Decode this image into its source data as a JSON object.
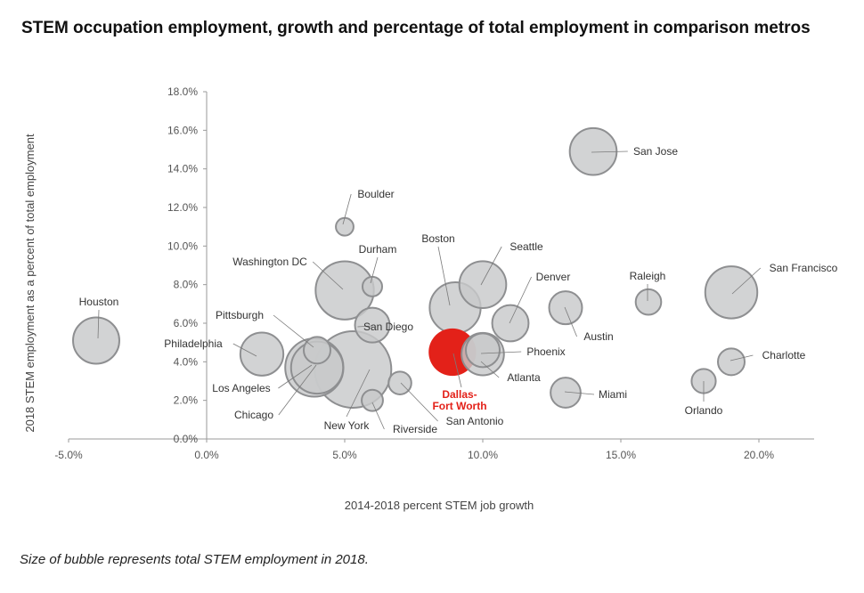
{
  "title": "STEM occupation employment, growth and percentage of total employment in comparison metros",
  "note": "Size of bubble represents total STEM employment in 2018.",
  "colors": {
    "bubble_fill": "#c8c9cb",
    "bubble_stroke": "#8e8f91",
    "highlight": "#e32119",
    "leader": "#7a7a7a"
  },
  "chart_data": {
    "type": "scatter",
    "xlabel": "2014-2018 percent STEM job growth",
    "ylabel": "2018 STEM employment as a percent of total employment",
    "xlim": [
      -0.05,
      0.22
    ],
    "ylim": [
      0,
      0.18
    ],
    "x_ticks": [
      {
        "value": -0.05,
        "label": "-5.0%"
      },
      {
        "value": 0,
        "label": "0.0%"
      },
      {
        "value": 0.05,
        "label": "5.0%"
      },
      {
        "value": 0.1,
        "label": "10.0%"
      },
      {
        "value": 0.15,
        "label": "15.0%"
      },
      {
        "value": 0.2,
        "label": "20.0%"
      }
    ],
    "y_ticks": [
      {
        "value": 0,
        "label": "0.0%"
      },
      {
        "value": 0.02,
        "label": "2.0%"
      },
      {
        "value": 0.04,
        "label": "4.0%"
      },
      {
        "value": 0.06,
        "label": "6.0%"
      },
      {
        "value": 0.08,
        "label": "8.0%"
      },
      {
        "value": 0.1,
        "label": "10.0%"
      },
      {
        "value": 0.12,
        "label": "12.0%"
      },
      {
        "value": 0.14,
        "label": "14.0%"
      },
      {
        "value": 0.16,
        "label": "16.0%"
      },
      {
        "value": 0.18,
        "label": "18.0%"
      }
    ],
    "size_legend": "Size of bubble represents total STEM employment in 2018",
    "points": [
      {
        "name": "New York",
        "x": 0.053,
        "y": 0.036,
        "size": 1.0
      },
      {
        "name": "Washington DC",
        "x": 0.05,
        "y": 0.077,
        "size": 0.55
      },
      {
        "name": "Los Angeles",
        "x": 0.039,
        "y": 0.037,
        "size": 0.55
      },
      {
        "name": "Chicago",
        "x": 0.04,
        "y": 0.037,
        "size": 0.43
      },
      {
        "name": "Boston",
        "x": 0.09,
        "y": 0.068,
        "size": 0.41
      },
      {
        "name": "San Francisco",
        "x": 0.19,
        "y": 0.076,
        "size": 0.43
      },
      {
        "name": "Dallas-Fort Worth",
        "x": 0.089,
        "y": 0.045,
        "size": 0.35,
        "highlight": true
      },
      {
        "name": "Seattle",
        "x": 0.1,
        "y": 0.08,
        "size": 0.34
      },
      {
        "name": "San Jose",
        "x": 0.14,
        "y": 0.149,
        "size": 0.34
      },
      {
        "name": "Houston",
        "x": -0.04,
        "y": 0.051,
        "size": 0.33
      },
      {
        "name": "Philadelphia",
        "x": 0.02,
        "y": 0.044,
        "size": 0.28
      },
      {
        "name": "Atlanta",
        "x": 0.1,
        "y": 0.044,
        "size": 0.27
      },
      {
        "name": "Phoenix",
        "x": 0.1,
        "y": 0.046,
        "size": 0.16
      },
      {
        "name": "Denver",
        "x": 0.11,
        "y": 0.06,
        "size": 0.19
      },
      {
        "name": "San Diego",
        "x": 0.06,
        "y": 0.059,
        "size": 0.17
      },
      {
        "name": "Austin",
        "x": 0.13,
        "y": 0.068,
        "size": 0.15
      },
      {
        "name": "Miami",
        "x": 0.13,
        "y": 0.024,
        "size": 0.12
      },
      {
        "name": "Pittsburgh",
        "x": 0.04,
        "y": 0.046,
        "size": 0.09
      },
      {
        "name": "Charlotte",
        "x": 0.19,
        "y": 0.04,
        "size": 0.09
      },
      {
        "name": "Raleigh",
        "x": 0.16,
        "y": 0.071,
        "size": 0.08
      },
      {
        "name": "Orlando",
        "x": 0.18,
        "y": 0.03,
        "size": 0.07
      },
      {
        "name": "San Antonio",
        "x": 0.07,
        "y": 0.029,
        "size": 0.06
      },
      {
        "name": "Riverside",
        "x": 0.06,
        "y": 0.02,
        "size": 0.05
      },
      {
        "name": "Durham",
        "x": 0.06,
        "y": 0.079,
        "size": 0.04
      },
      {
        "name": "Boulder",
        "x": 0.05,
        "y": 0.11,
        "size": 0.03
      }
    ]
  }
}
